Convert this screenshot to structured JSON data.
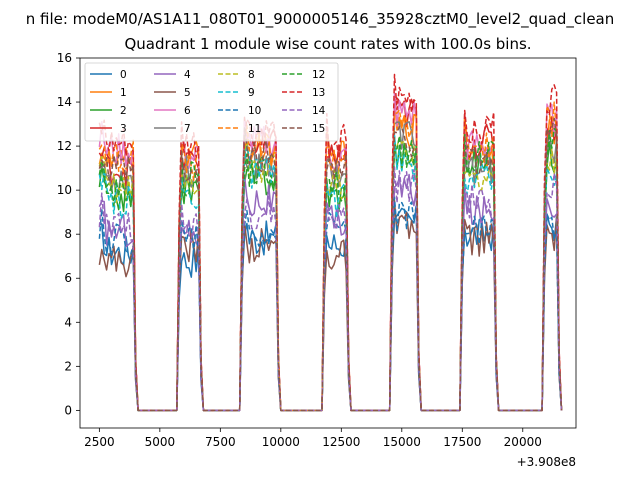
{
  "figure": {
    "suptitle": "n file: modeM0/AS1A11_080T01_9000005146_35928cztM0_level2_quad_clean",
    "title": "Quadrant 1 module wise count rates with 100.0s bins.",
    "x_offset_label": "+3.908e8"
  },
  "chart_data": {
    "type": "line",
    "title": "Quadrant 1 module wise count rates with 100.0s bins.",
    "xlabel": "",
    "ylabel": "",
    "x_offset": 390800000,
    "xlim": [
      1700,
      22200
    ],
    "ylim": [
      -0.8,
      16
    ],
    "xticks": [
      2500,
      5000,
      7500,
      10000,
      12500,
      15000,
      17500,
      20000
    ],
    "xtick_labels": [
      "2500",
      "5000",
      "7500",
      "10000",
      "12500",
      "15000",
      "17500",
      "20000"
    ],
    "yticks": [
      0,
      2,
      4,
      6,
      8,
      10,
      12,
      14,
      16
    ],
    "ytick_labels": [
      "0",
      "2",
      "4",
      "6",
      "8",
      "10",
      "12",
      "14",
      "16"
    ],
    "grid": false,
    "legend_placement": "top-left",
    "legend_columns": 4,
    "segments": [
      [
        2500,
        3900
      ],
      [
        5800,
        6600
      ],
      [
        8400,
        9800
      ],
      [
        11800,
        12700
      ],
      [
        14600,
        15600
      ],
      [
        17500,
        18800
      ],
      [
        20900,
        21400
      ]
    ],
    "gap_value": 0,
    "series": [
      {
        "name": "0",
        "color": "#1f77b4",
        "dash": "solid",
        "levels": [
          7.2,
          6.8,
          7.8,
          7.5,
          8.5,
          8.0,
          8.4
        ]
      },
      {
        "name": "1",
        "color": "#ff7f0e",
        "dash": "solid",
        "levels": [
          11.2,
          11.5,
          11.8,
          11.5,
          12.8,
          11.8,
          12.8
        ]
      },
      {
        "name": "2",
        "color": "#2ca02c",
        "dash": "solid",
        "levels": [
          9.8,
          10.0,
          10.5,
          9.8,
          11.5,
          11.2,
          11.5
        ]
      },
      {
        "name": "3",
        "color": "#d62728",
        "dash": "solid",
        "levels": [
          11.0,
          11.3,
          12.0,
          11.5,
          13.5,
          12.2,
          13.0
        ]
      },
      {
        "name": "4",
        "color": "#9467bd",
        "dash": "solid",
        "levels": [
          8.2,
          8.0,
          9.5,
          8.5,
          10.0,
          9.0,
          9.5
        ]
      },
      {
        "name": "5",
        "color": "#8c564b",
        "dash": "solid",
        "levels": [
          6.8,
          7.5,
          7.5,
          7.0,
          8.2,
          7.8,
          8.0
        ]
      },
      {
        "name": "6",
        "color": "#e377c2",
        "dash": "solid",
        "levels": [
          11.8,
          11.5,
          12.2,
          11.5,
          13.5,
          12.0,
          13.2
        ]
      },
      {
        "name": "7",
        "color": "#7f7f7f",
        "dash": "solid",
        "levels": [
          10.5,
          10.8,
          11.2,
          10.8,
          12.5,
          11.0,
          12.0
        ]
      },
      {
        "name": "8",
        "color": "#bcbd22",
        "dash": "dashed",
        "levels": [
          10.2,
          10.2,
          11.0,
          10.2,
          11.8,
          10.5,
          11.5
        ]
      },
      {
        "name": "9",
        "color": "#17becf",
        "dash": "dashed",
        "levels": [
          9.5,
          9.8,
          10.8,
          9.5,
          11.2,
          10.5,
          11.0
        ]
      },
      {
        "name": "10",
        "color": "#1f77b4",
        "dash": "dashed",
        "levels": [
          7.8,
          7.8,
          8.0,
          8.2,
          8.8,
          8.2,
          8.6
        ]
      },
      {
        "name": "11",
        "color": "#ff7f0e",
        "dash": "dashed",
        "levels": [
          11.5,
          11.2,
          12.0,
          11.6,
          13.0,
          12.0,
          13.2
        ]
      },
      {
        "name": "12",
        "color": "#2ca02c",
        "dash": "dashed",
        "levels": [
          10.0,
          10.5,
          10.8,
          10.2,
          11.8,
          11.5,
          12.0
        ]
      },
      {
        "name": "13",
        "color": "#d62728",
        "dash": "dashed",
        "levels": [
          12.0,
          12.0,
          12.5,
          12.2,
          14.0,
          12.8,
          14.0
        ]
      },
      {
        "name": "14",
        "color": "#9467bd",
        "dash": "dashed",
        "levels": [
          8.5,
          8.2,
          9.0,
          8.8,
          10.2,
          9.5,
          10.0
        ]
      },
      {
        "name": "15",
        "color": "#8c564b",
        "dash": "dashed",
        "levels": [
          10.8,
          10.5,
          11.5,
          11.0,
          12.2,
          11.2,
          12.5
        ]
      }
    ]
  }
}
